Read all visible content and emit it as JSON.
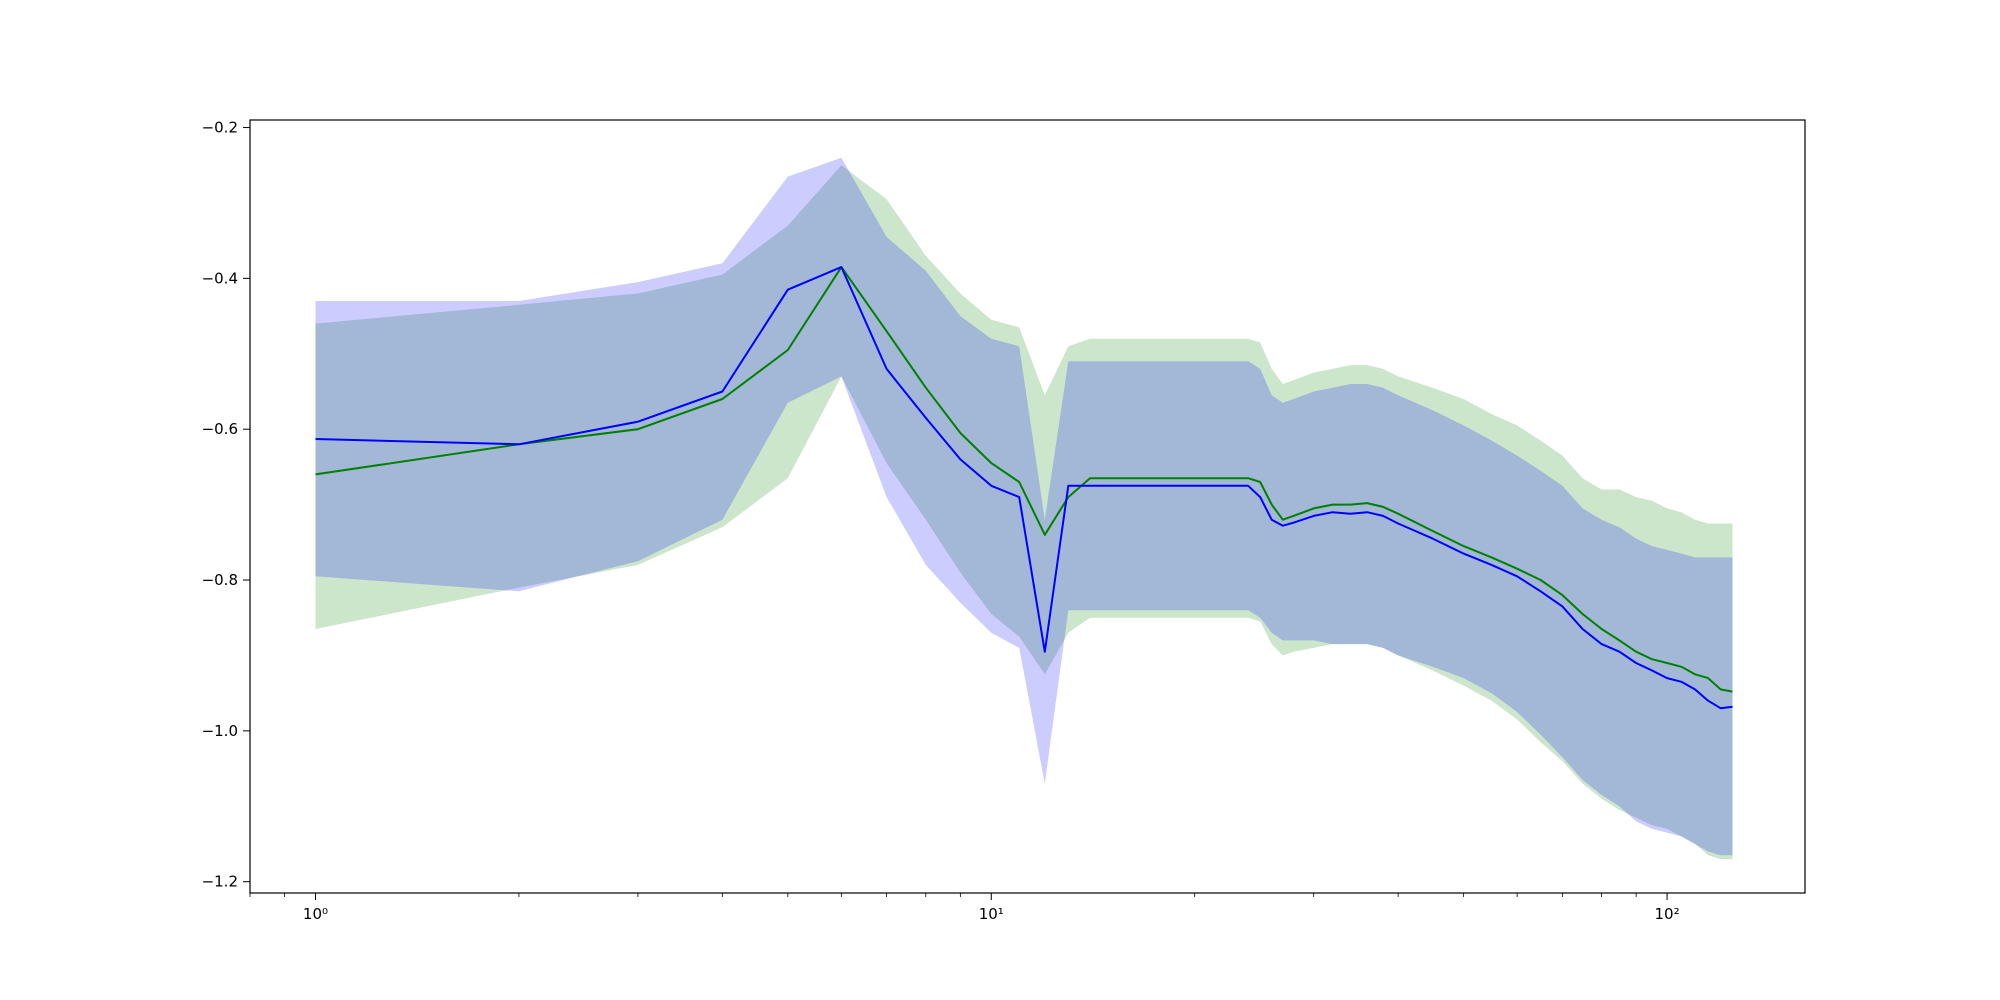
{
  "chart_data": {
    "type": "line",
    "title": "",
    "xlabel": "",
    "ylabel": "",
    "x_scale": "log",
    "xlim": [
      0.8,
      160
    ],
    "ylim": [
      -1.215,
      -0.19
    ],
    "x_ticks": [
      {
        "value": 1,
        "label": "10⁰"
      },
      {
        "value": 10,
        "label": "10¹"
      },
      {
        "value": 100,
        "label": "10²"
      }
    ],
    "y_ticks": [
      {
        "value": -0.2,
        "label": "−0.2"
      },
      {
        "value": -0.4,
        "label": "−0.4"
      },
      {
        "value": -0.6,
        "label": "−0.6"
      },
      {
        "value": -0.8,
        "label": "−0.8"
      },
      {
        "value": -1.0,
        "label": "−1.0"
      },
      {
        "value": -1.2,
        "label": "−1.2"
      }
    ],
    "grid": false,
    "legend": "none",
    "series": [
      {
        "color": "#008000",
        "band_color": "#008000",
        "x": [
          1,
          2,
          3,
          4,
          5,
          6,
          7,
          8,
          9,
          10,
          11,
          12,
          13,
          14,
          20,
          24,
          25,
          26,
          27,
          28,
          30,
          32,
          34,
          36,
          38,
          40,
          45,
          50,
          55,
          60,
          65,
          70,
          75,
          80,
          85,
          90,
          95,
          100,
          105,
          110,
          115,
          120,
          125
        ],
        "mean": [
          -0.66,
          -0.62,
          -0.6,
          -0.56,
          -0.495,
          -0.385,
          -0.47,
          -0.545,
          -0.605,
          -0.645,
          -0.67,
          -0.74,
          -0.69,
          -0.665,
          -0.665,
          -0.665,
          -0.67,
          -0.7,
          -0.72,
          -0.715,
          -0.705,
          -0.7,
          -0.7,
          -0.698,
          -0.703,
          -0.712,
          -0.735,
          -0.755,
          -0.77,
          -0.785,
          -0.8,
          -0.82,
          -0.845,
          -0.865,
          -0.88,
          -0.895,
          -0.905,
          -0.91,
          -0.915,
          -0.925,
          -0.93,
          -0.945,
          -0.948
        ],
        "upper": [
          -0.46,
          -0.435,
          -0.42,
          -0.395,
          -0.33,
          -0.25,
          -0.295,
          -0.37,
          -0.42,
          -0.455,
          -0.465,
          -0.555,
          -0.49,
          -0.48,
          -0.48,
          -0.48,
          -0.485,
          -0.52,
          -0.54,
          -0.535,
          -0.525,
          -0.52,
          -0.515,
          -0.515,
          -0.52,
          -0.53,
          -0.545,
          -0.56,
          -0.58,
          -0.595,
          -0.615,
          -0.635,
          -0.665,
          -0.68,
          -0.68,
          -0.69,
          -0.695,
          -0.705,
          -0.71,
          -0.72,
          -0.725,
          -0.725,
          -0.725
        ],
        "lower": [
          -0.865,
          -0.81,
          -0.78,
          -0.73,
          -0.665,
          -0.53,
          -0.645,
          -0.72,
          -0.79,
          -0.845,
          -0.875,
          -0.925,
          -0.87,
          -0.85,
          -0.85,
          -0.85,
          -0.855,
          -0.885,
          -0.9,
          -0.895,
          -0.89,
          -0.885,
          -0.885,
          -0.885,
          -0.89,
          -0.9,
          -0.92,
          -0.94,
          -0.96,
          -0.985,
          -1.015,
          -1.04,
          -1.07,
          -1.09,
          -1.105,
          -1.115,
          -1.125,
          -1.13,
          -1.14,
          -1.15,
          -1.165,
          -1.17,
          -1.17
        ]
      },
      {
        "color": "#0000ff",
        "band_color": "#0000ff",
        "x": [
          1,
          2,
          3,
          4,
          5,
          6,
          7,
          8,
          9,
          10,
          11,
          12,
          13,
          14,
          20,
          24,
          25,
          26,
          27,
          28,
          30,
          32,
          34,
          36,
          38,
          40,
          45,
          50,
          55,
          60,
          65,
          70,
          75,
          80,
          85,
          90,
          95,
          100,
          105,
          110,
          115,
          120,
          125
        ],
        "mean": [
          -0.613,
          -0.62,
          -0.59,
          -0.55,
          -0.415,
          -0.385,
          -0.52,
          -0.585,
          -0.64,
          -0.675,
          -0.69,
          -0.895,
          -0.675,
          -0.675,
          -0.675,
          -0.675,
          -0.69,
          -0.72,
          -0.728,
          -0.724,
          -0.715,
          -0.71,
          -0.712,
          -0.71,
          -0.715,
          -0.725,
          -0.745,
          -0.765,
          -0.78,
          -0.795,
          -0.815,
          -0.835,
          -0.865,
          -0.885,
          -0.895,
          -0.91,
          -0.92,
          -0.93,
          -0.935,
          -0.945,
          -0.96,
          -0.97,
          -0.968
        ],
        "upper": [
          -0.43,
          -0.43,
          -0.405,
          -0.38,
          -0.265,
          -0.24,
          -0.345,
          -0.39,
          -0.45,
          -0.48,
          -0.49,
          -0.72,
          -0.51,
          -0.51,
          -0.51,
          -0.51,
          -0.52,
          -0.555,
          -0.565,
          -0.56,
          -0.55,
          -0.545,
          -0.54,
          -0.54,
          -0.545,
          -0.555,
          -0.575,
          -0.595,
          -0.615,
          -0.635,
          -0.655,
          -0.675,
          -0.705,
          -0.72,
          -0.73,
          -0.745,
          -0.755,
          -0.76,
          -0.765,
          -0.77,
          -0.77,
          -0.77,
          -0.77
        ],
        "lower": [
          -0.795,
          -0.815,
          -0.775,
          -0.72,
          -0.565,
          -0.53,
          -0.69,
          -0.78,
          -0.83,
          -0.87,
          -0.89,
          -1.07,
          -0.84,
          -0.84,
          -0.84,
          -0.84,
          -0.85,
          -0.87,
          -0.88,
          -0.88,
          -0.88,
          -0.885,
          -0.885,
          -0.885,
          -0.89,
          -0.9,
          -0.915,
          -0.93,
          -0.95,
          -0.975,
          -1.005,
          -1.035,
          -1.065,
          -1.085,
          -1.1,
          -1.12,
          -1.13,
          -1.135,
          -1.14,
          -1.15,
          -1.16,
          -1.165,
          -1.165
        ]
      }
    ]
  }
}
